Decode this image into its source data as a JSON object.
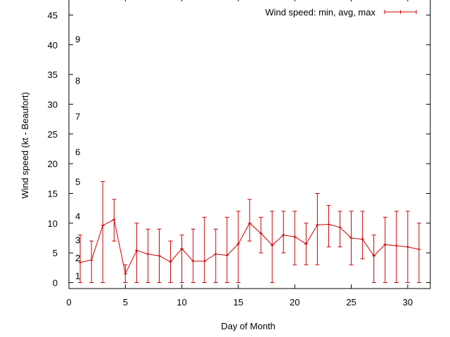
{
  "chart_data": {
    "type": "line",
    "title": "",
    "xlabel": "Day of Month",
    "ylabel": "Wind speed (kt - Beaufort)",
    "xlim": [
      0,
      32
    ],
    "ylim": [
      -1,
      48
    ],
    "x_ticks": [
      0,
      5,
      10,
      15,
      20,
      25,
      30
    ],
    "y_ticks": [
      0,
      5,
      10,
      15,
      20,
      25,
      30,
      35,
      40,
      45
    ],
    "beaufort_labels": [
      {
        "label": "1",
        "y": 1.2
      },
      {
        "label": "2",
        "y": 4.2
      },
      {
        "label": "3",
        "y": 7.2
      },
      {
        "label": "4",
        "y": 11.2
      },
      {
        "label": "5",
        "y": 17.0
      },
      {
        "label": "6",
        "y": 22.0
      },
      {
        "label": "7",
        "y": 28.0
      },
      {
        "label": "8",
        "y": 34.0
      },
      {
        "label": "9",
        "y": 41.0
      }
    ],
    "grid": false,
    "legend_position": "top-right",
    "series": [
      {
        "name": "Wind speed: min, avg, max",
        "color": "#cc0000",
        "points": [
          {
            "x": 1,
            "min": 0,
            "avg": 3.4,
            "max": 8
          },
          {
            "x": 2,
            "min": 0,
            "avg": 3.8,
            "max": 7
          },
          {
            "x": 3,
            "min": 0,
            "avg": 9.6,
            "max": 17
          },
          {
            "x": 4,
            "min": 7,
            "avg": 10.6,
            "max": 14
          },
          {
            "x": 5,
            "min": 0,
            "avg": 1.5,
            "max": 3
          },
          {
            "x": 6,
            "min": 0,
            "avg": 5.4,
            "max": 10
          },
          {
            "x": 7,
            "min": 0,
            "avg": 4.8,
            "max": 9
          },
          {
            "x": 8,
            "min": 0,
            "avg": 4.5,
            "max": 9
          },
          {
            "x": 9,
            "min": 0,
            "avg": 3.5,
            "max": 7
          },
          {
            "x": 10,
            "min": 0,
            "avg": 5.7,
            "max": 8
          },
          {
            "x": 11,
            "min": 0,
            "avg": 3.6,
            "max": 9
          },
          {
            "x": 12,
            "min": 0,
            "avg": 3.6,
            "max": 11
          },
          {
            "x": 13,
            "min": 0,
            "avg": 4.8,
            "max": 9
          },
          {
            "x": 14,
            "min": 0,
            "avg": 4.6,
            "max": 11
          },
          {
            "x": 15,
            "min": 0,
            "avg": 6.5,
            "max": 12
          },
          {
            "x": 16,
            "min": 7,
            "avg": 10.0,
            "max": 14
          },
          {
            "x": 17,
            "min": 5,
            "avg": 8.3,
            "max": 11
          },
          {
            "x": 18,
            "min": 0,
            "avg": 6.3,
            "max": 12
          },
          {
            "x": 19,
            "min": 5,
            "avg": 8.0,
            "max": 12
          },
          {
            "x": 20,
            "min": 3,
            "avg": 7.7,
            "max": 12
          },
          {
            "x": 21,
            "min": 3,
            "avg": 6.5,
            "max": 10
          },
          {
            "x": 22,
            "min": 3,
            "avg": 9.7,
            "max": 15
          },
          {
            "x": 23,
            "min": 6,
            "avg": 9.8,
            "max": 13
          },
          {
            "x": 24,
            "min": 6,
            "avg": 9.3,
            "max": 12
          },
          {
            "x": 25,
            "min": 3,
            "avg": 7.5,
            "max": 12
          },
          {
            "x": 26,
            "min": 4,
            "avg": 7.3,
            "max": 12
          },
          {
            "x": 27,
            "min": 0,
            "avg": 4.5,
            "max": 8
          },
          {
            "x": 28,
            "min": 0,
            "avg": 6.4,
            "max": 11
          },
          {
            "x": 29,
            "min": 0,
            "avg": 6.2,
            "max": 12
          },
          {
            "x": 30,
            "min": 0,
            "avg": 6.0,
            "max": 12
          },
          {
            "x": 31,
            "min": 0,
            "avg": 5.6,
            "max": 10
          }
        ]
      }
    ]
  }
}
